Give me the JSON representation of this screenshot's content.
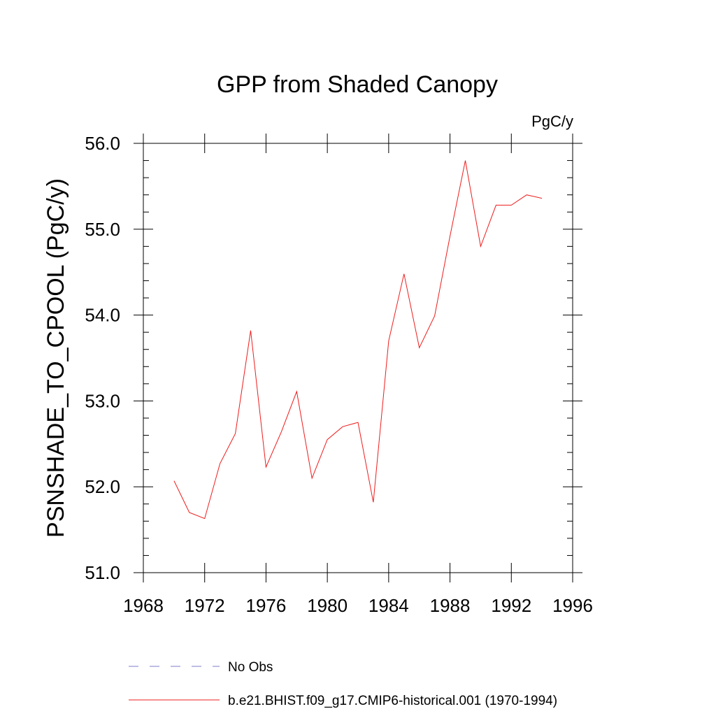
{
  "chart_data": {
    "type": "line",
    "title": "GPP from Shaded Canopy",
    "units": "PgC/y",
    "ylabel": "PSNSHADE_TO_CPOOL  (PgC/y)",
    "xlabel": "",
    "xlim": [
      1968,
      1996
    ],
    "ylim": [
      51.0,
      56.0
    ],
    "x_ticks": [
      1968,
      1972,
      1976,
      1980,
      1984,
      1988,
      1992,
      1996
    ],
    "x_tick_labels": [
      "1968",
      "1972",
      "1976",
      "1980",
      "1984",
      "1988",
      "1992",
      "1996"
    ],
    "y_ticks": [
      51.0,
      52.0,
      53.0,
      54.0,
      55.0,
      56.0
    ],
    "y_tick_labels": [
      "51.0",
      "52.0",
      "53.0",
      "54.0",
      "55.0",
      "56.0"
    ],
    "grid": false,
    "legend_position": "bottom",
    "series": [
      {
        "name": "No Obs",
        "color": "#7b7bc8",
        "dash": "dashed",
        "x": [],
        "y": []
      },
      {
        "name": "b.e21.BHIST.f09_g17.CMIP6-historical.001 (1970-1994)",
        "color": "#ee1c1c",
        "dash": "solid",
        "x": [
          1970,
          1971,
          1972,
          1973,
          1974,
          1975,
          1976,
          1977,
          1978,
          1979,
          1980,
          1981,
          1982,
          1983,
          1984,
          1985,
          1986,
          1987,
          1988,
          1989,
          1990,
          1991,
          1992,
          1993,
          1994
        ],
        "y": [
          52.07,
          51.7,
          51.63,
          52.27,
          52.62,
          53.82,
          52.23,
          52.64,
          53.11,
          52.1,
          52.55,
          52.7,
          52.75,
          51.82,
          53.7,
          54.48,
          53.62,
          53.99,
          54.92,
          55.8,
          54.8,
          55.28,
          55.28,
          55.4,
          55.36
        ]
      }
    ]
  }
}
